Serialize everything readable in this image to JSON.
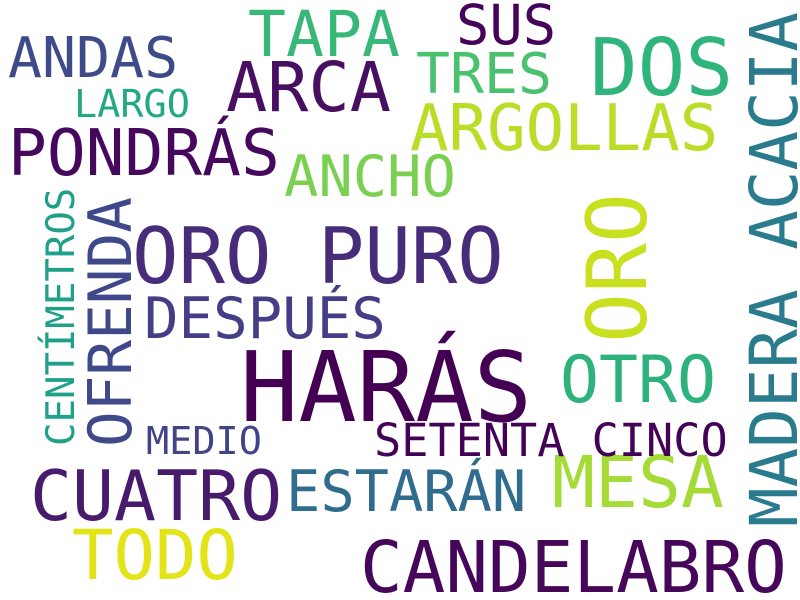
{
  "words": [
    {
      "text": "HARÁS",
      "color": "#440154"
    },
    {
      "text": "ORO PURO",
      "color": "#472c7a"
    },
    {
      "text": "ORO",
      "color": "#c8e020"
    },
    {
      "text": "CANDELABRO",
      "color": "#46075a"
    },
    {
      "text": "MADERA ACACIA",
      "color": "#2a7b8e"
    },
    {
      "text": "CUATRO",
      "color": "#481a6c"
    },
    {
      "text": "DOS",
      "color": "#2fb47c"
    },
    {
      "text": "PONDRÁS",
      "color": "#46085c"
    },
    {
      "text": "ARCA",
      "color": "#470e61"
    },
    {
      "text": "MESA",
      "color": "#a5db36"
    },
    {
      "text": "TODO",
      "color": "#e2e418"
    },
    {
      "text": "ESTARÁN",
      "color": "#2f6c8e"
    },
    {
      "text": "OFRENDA",
      "color": "#3f4889"
    },
    {
      "text": "ARGOLLAS",
      "color": "#bade28"
    },
    {
      "text": "TAPA",
      "color": "#37b878"
    },
    {
      "text": "ANDAS",
      "color": "#3e4a89"
    },
    {
      "text": "OTRO",
      "color": "#2db27d"
    },
    {
      "text": "DESPUÉS",
      "color": "#433e85"
    },
    {
      "text": "SUS",
      "color": "#450457"
    },
    {
      "text": "TRES",
      "color": "#4ac16d"
    },
    {
      "text": "ANCHO",
      "color": "#7ad151"
    },
    {
      "text": "SETENTA CINCO",
      "color": "#440256"
    },
    {
      "text": "CENTÍMETROS",
      "color": "#1fa088"
    },
    {
      "text": "MEDIO",
      "color": "#414487"
    },
    {
      "text": "LARGO",
      "color": "#22a884"
    }
  ]
}
